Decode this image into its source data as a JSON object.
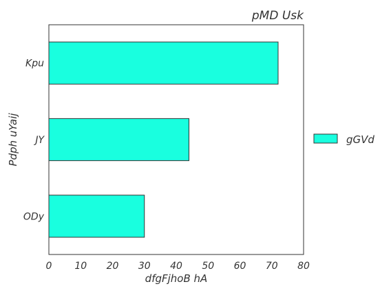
{
  "chart_data": {
    "type": "bar",
    "orientation": "horizontal",
    "title": "pMD  Usk",
    "xlabel": "dfgFjhoB  hA",
    "ylabel": "Pdph uYaij",
    "categories": [
      "Kpu",
      "JY",
      "ODy"
    ],
    "series": [
      {
        "name": "gGVd",
        "values": [
          72,
          44,
          30
        ],
        "color": "#19ffdf"
      }
    ],
    "xlim": [
      0,
      80
    ],
    "xticks": [
      0,
      10,
      20,
      30,
      40,
      50,
      60,
      70,
      80
    ],
    "grid": false,
    "legend": {
      "position": "right",
      "entries": [
        "gGVd"
      ]
    }
  }
}
